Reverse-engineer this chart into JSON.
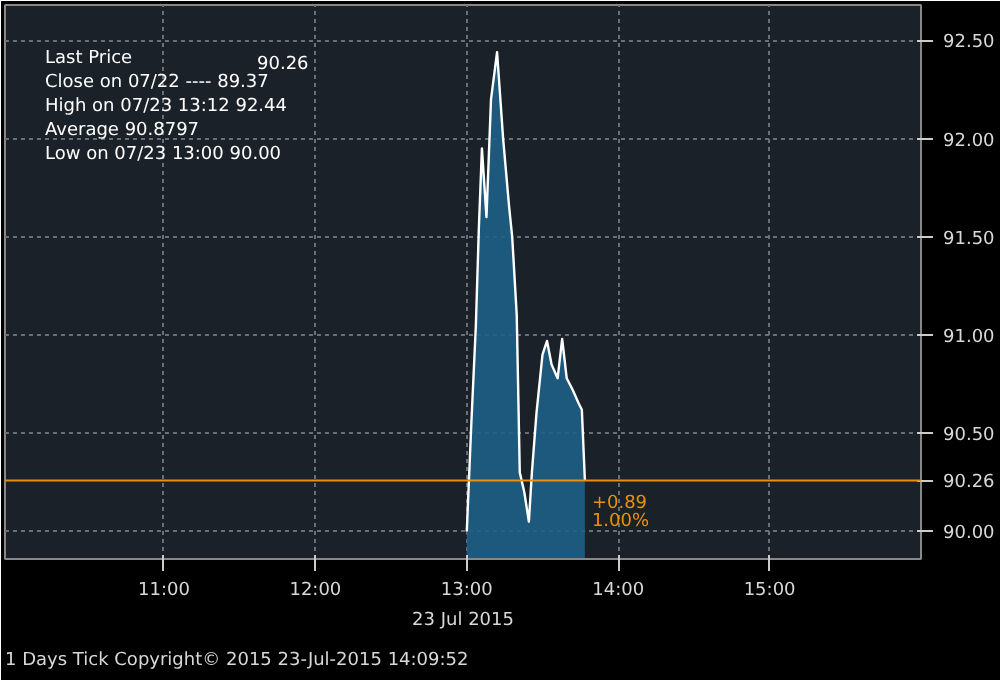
{
  "chart_data": {
    "type": "area",
    "x": [
      13.0,
      13.03,
      13.06,
      13.08,
      13.1,
      13.13,
      13.16,
      13.2,
      13.24,
      13.28,
      13.3,
      13.33,
      13.35,
      13.38,
      13.41,
      13.43,
      13.46,
      13.5,
      13.53,
      13.56,
      13.6,
      13.63,
      13.66,
      13.7,
      13.74,
      13.76,
      13.78
    ],
    "series": [
      {
        "name": "Last Price",
        "color": "#1d5f86",
        "values": [
          90.0,
          90.55,
          91.05,
          91.55,
          91.95,
          91.6,
          92.2,
          92.44,
          92.0,
          91.65,
          91.5,
          91.1,
          90.3,
          90.2,
          90.05,
          90.3,
          90.6,
          90.9,
          90.97,
          90.85,
          90.78,
          90.98,
          90.78,
          90.72,
          90.65,
          90.62,
          90.26
        ]
      }
    ],
    "xlabel": "23 Jul 2015",
    "xlim": [
      9.95,
      16.0
    ],
    "xticks": [
      {
        "value": 11,
        "label": "11:00"
      },
      {
        "value": 12,
        "label": "12:00"
      },
      {
        "value": 13,
        "label": "13:00"
      },
      {
        "value": 14,
        "label": "14:00"
      },
      {
        "value": 15,
        "label": "15:00"
      }
    ],
    "ylim": [
      89.86,
      92.68
    ],
    "yticks": [
      {
        "value": 90,
        "label": "90.00"
      },
      {
        "value": 90.5,
        "label": "90.50"
      },
      {
        "value": 91,
        "label": "91.00"
      },
      {
        "value": 91.5,
        "label": "91.50"
      },
      {
        "value": 92,
        "label": "92.00"
      },
      {
        "value": 92.5,
        "label": "92.50"
      }
    ],
    "ref_lines": [
      {
        "axis": "y",
        "value": 90.26,
        "label": "90.26",
        "color": "#e8900c"
      }
    ],
    "annotations": [
      {
        "text": "+0.89",
        "x": 13.8,
        "y": 90.26
      },
      {
        "text": "1.00%",
        "x": 13.8,
        "y": 90.26
      },
      "Close on 07/22 ---- 89.37",
      "High on 07/23 13:12 92.44",
      "Average 90.8797",
      "Low on 07/23 13:00 90.00",
      "1 Days  Tick  Copyright© 2015   23-Jul-2015 14:09:52"
    ],
    "grid": true
  }
}
